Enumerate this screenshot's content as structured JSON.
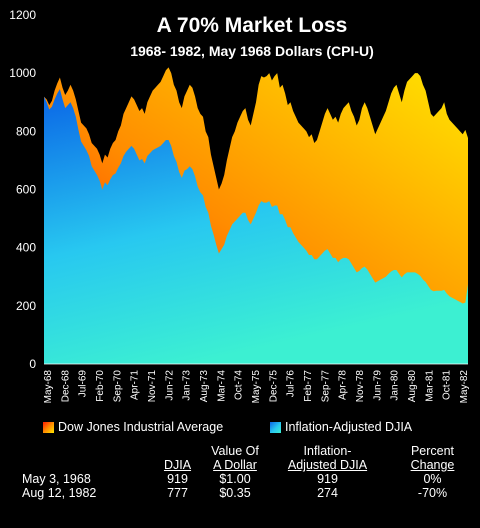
{
  "chart_data": {
    "type": "area",
    "title": "A 70% Market Loss",
    "subtitle": "1968- 1982, May 1968 Dollars (CPI-U)",
    "ylim": [
      0,
      1200
    ],
    "yticks": [
      "0",
      "200",
      "400",
      "600",
      "800",
      "1000",
      "1200"
    ],
    "x_tick_labels": [
      "May-68",
      "Dec-68",
      "Jul-69",
      "Feb-70",
      "Sep-70",
      "Apr-71",
      "Nov-71",
      "Jun-72",
      "Jan-73",
      "Aug-73",
      "Mar-74",
      "Oct-74",
      "May-75",
      "Dec-75",
      "Jul-76",
      "Feb-77",
      "Sep-77",
      "Apr-78",
      "Nov-78",
      "Jun-79",
      "Jan-80",
      "Aug-80",
      "Mar-81",
      "Oct-81",
      "May-82"
    ],
    "series": [
      {
        "name": "Dow Jones Industrial Average",
        "colors": [
          "#ff1a00",
          "#ff8c00",
          "#ffe600"
        ],
        "values": [
          919,
          910,
          890,
          905,
          940,
          965,
          985,
          950,
          925,
          940,
          960,
          940,
          910,
          870,
          830,
          820,
          810,
          790,
          760,
          750,
          740,
          720,
          690,
          720,
          710,
          740,
          760,
          770,
          800,
          820,
          860,
          880,
          900,
          920,
          910,
          890,
          870,
          880,
          860,
          900,
          920,
          940,
          950,
          960,
          970,
          990,
          1010,
          1020,
          1000,
          960,
          940,
          900,
          880,
          920,
          940,
          960,
          950,
          920,
          880,
          860,
          850,
          800,
          780,
          720,
          680,
          640,
          600,
          620,
          650,
          700,
          740,
          780,
          800,
          830,
          850,
          870,
          880,
          840,
          820,
          860,
          900,
          960,
          990,
          985,
          990,
          1000,
          975,
          990,
          1000,
          950,
          960,
          930,
          890,
          900,
          870,
          850,
          830,
          820,
          810,
          800,
          780,
          790,
          760,
          770,
          800,
          830,
          860,
          880,
          860,
          840,
          850,
          830,
          860,
          880,
          890,
          900,
          870,
          850,
          820,
          840,
          880,
          900,
          880,
          850,
          820,
          790,
          810,
          830,
          850,
          870,
          900,
          930,
          950,
          960,
          930,
          900,
          940,
          970,
          980,
          990,
          1000,
          1000,
          990,
          960,
          940,
          900,
          860,
          850,
          860,
          870,
          880,
          900,
          860,
          840,
          830,
          820,
          810,
          800,
          790,
          805,
          777
        ]
      },
      {
        "name": "Inflation-Adjusted DJIA",
        "colors": [
          "#0a64e6",
          "#28c8f0",
          "#3cf0d2"
        ],
        "values": [
          919,
          900,
          875,
          885,
          910,
          930,
          945,
          910,
          880,
          890,
          900,
          880,
          850,
          805,
          765,
          750,
          735,
          715,
          680,
          665,
          650,
          630,
          600,
          625,
          615,
          635,
          650,
          655,
          675,
          690,
          715,
          730,
          740,
          750,
          740,
          720,
          700,
          705,
          690,
          715,
          725,
          735,
          740,
          745,
          750,
          760,
          770,
          770,
          750,
          715,
          695,
          660,
          640,
          665,
          670,
          680,
          670,
          645,
          610,
          590,
          580,
          540,
          520,
          475,
          445,
          410,
          380,
          395,
          410,
          440,
          460,
          480,
          490,
          500,
          510,
          520,
          520,
          495,
          480,
          500,
          520,
          545,
          560,
          555,
          555,
          560,
          540,
          545,
          545,
          515,
          515,
          495,
          470,
          470,
          450,
          435,
          420,
          410,
          400,
          390,
          375,
          375,
          360,
          360,
          370,
          380,
          390,
          395,
          380,
          365,
          365,
          350,
          360,
          365,
          365,
          360,
          345,
          330,
          315,
          320,
          330,
          335,
          325,
          310,
          295,
          280,
          285,
          290,
          295,
          300,
          310,
          318,
          323,
          323,
          310,
          298,
          308,
          315,
          315,
          315,
          315,
          310,
          303,
          290,
          282,
          268,
          255,
          250,
          252,
          252,
          252,
          255,
          242,
          233,
          228,
          223,
          218,
          213,
          208,
          211,
          274
        ]
      }
    ]
  },
  "legend": {
    "dj_label": "Dow Jones Industrial Average",
    "adj_label": "Inflation-Adjusted DJIA"
  },
  "table": {
    "headers": {
      "djia": "DJIA",
      "value_line1": "Value Of",
      "value_line2": "A Dollar",
      "adj_line1": "Inflation-",
      "adj_line2": "Adjusted DJIA",
      "pct_line1": "Percent",
      "pct_line2": "Change"
    },
    "rows": [
      {
        "date": "May 3, 1968",
        "djia": "919",
        "dollar": "$1.00",
        "adj": "919",
        "pct": "0%"
      },
      {
        "date": "Aug 12, 1982",
        "djia": "777",
        "dollar": "$0.35",
        "adj": "274",
        "pct": "-70%"
      }
    ]
  }
}
